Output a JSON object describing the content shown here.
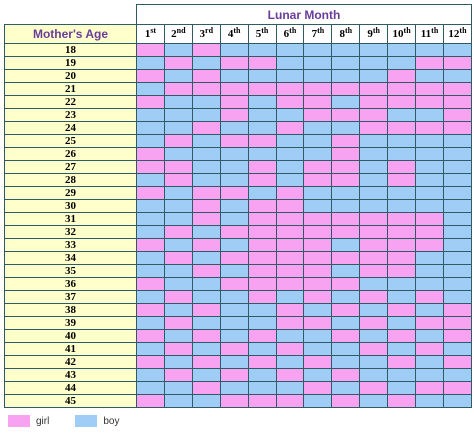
{
  "table": {
    "title": "Lunar Month",
    "age_header": "Mother's Age",
    "months": [
      {
        "num": "1",
        "suffix": "st"
      },
      {
        "num": "2",
        "suffix": "nd"
      },
      {
        "num": "3",
        "suffix": "rd"
      },
      {
        "num": "4",
        "suffix": "th"
      },
      {
        "num": "5",
        "suffix": "th"
      },
      {
        "num": "6",
        "suffix": "th"
      },
      {
        "num": "7",
        "suffix": "th"
      },
      {
        "num": "8",
        "suffix": "th"
      },
      {
        "num": "9",
        "suffix": "th"
      },
      {
        "num": "10",
        "suffix": "th"
      },
      {
        "num": "11",
        "suffix": "th"
      },
      {
        "num": "12",
        "suffix": "th"
      }
    ],
    "rows": [
      {
        "age": "18",
        "cells": [
          "girl",
          "boy",
          "girl",
          "boy",
          "boy",
          "boy",
          "boy",
          "boy",
          "boy",
          "boy",
          "boy",
          "boy"
        ]
      },
      {
        "age": "19",
        "cells": [
          "boy",
          "girl",
          "boy",
          "girl",
          "girl",
          "boy",
          "boy",
          "boy",
          "boy",
          "boy",
          "girl",
          "girl"
        ]
      },
      {
        "age": "20",
        "cells": [
          "girl",
          "boy",
          "girl",
          "boy",
          "boy",
          "boy",
          "boy",
          "boy",
          "boy",
          "girl",
          "boy",
          "boy"
        ]
      },
      {
        "age": "21",
        "cells": [
          "boy",
          "girl",
          "girl",
          "girl",
          "girl",
          "girl",
          "girl",
          "girl",
          "girl",
          "girl",
          "girl",
          "girl"
        ]
      },
      {
        "age": "22",
        "cells": [
          "girl",
          "boy",
          "boy",
          "girl",
          "boy",
          "girl",
          "girl",
          "boy",
          "girl",
          "girl",
          "girl",
          "girl"
        ]
      },
      {
        "age": "23",
        "cells": [
          "boy",
          "boy",
          "boy",
          "girl",
          "boy",
          "boy",
          "girl",
          "girl",
          "girl",
          "boy",
          "boy",
          "girl"
        ]
      },
      {
        "age": "24",
        "cells": [
          "boy",
          "boy",
          "girl",
          "boy",
          "boy",
          "girl",
          "boy",
          "boy",
          "girl",
          "girl",
          "girl",
          "girl"
        ]
      },
      {
        "age": "25",
        "cells": [
          "boy",
          "girl",
          "boy",
          "girl",
          "girl",
          "boy",
          "boy",
          "girl",
          "boy",
          "boy",
          "boy",
          "boy"
        ]
      },
      {
        "age": "26",
        "cells": [
          "girl",
          "boy",
          "boy",
          "boy",
          "boy",
          "boy",
          "boy",
          "girl",
          "boy",
          "boy",
          "boy",
          "boy"
        ]
      },
      {
        "age": "27",
        "cells": [
          "girl",
          "girl",
          "boy",
          "boy",
          "girl",
          "boy",
          "girl",
          "girl",
          "boy",
          "girl",
          "boy",
          "boy"
        ]
      },
      {
        "age": "28",
        "cells": [
          "boy",
          "girl",
          "boy",
          "boy",
          "girl",
          "boy",
          "girl",
          "girl",
          "boy",
          "girl",
          "boy",
          "boy"
        ]
      },
      {
        "age": "29",
        "cells": [
          "girl",
          "boy",
          "girl",
          "girl",
          "boy",
          "girl",
          "boy",
          "boy",
          "boy",
          "boy",
          "boy",
          "boy"
        ]
      },
      {
        "age": "30",
        "cells": [
          "boy",
          "boy",
          "girl",
          "boy",
          "girl",
          "girl",
          "boy",
          "boy",
          "boy",
          "boy",
          "boy",
          "boy"
        ]
      },
      {
        "age": "31",
        "cells": [
          "boy",
          "boy",
          "girl",
          "boy",
          "girl",
          "girl",
          "girl",
          "girl",
          "girl",
          "girl",
          "girl",
          "boy"
        ]
      },
      {
        "age": "32",
        "cells": [
          "boy",
          "girl",
          "boy",
          "girl",
          "girl",
          "girl",
          "girl",
          "girl",
          "girl",
          "girl",
          "girl",
          "boy"
        ]
      },
      {
        "age": "33",
        "cells": [
          "girl",
          "boy",
          "girl",
          "boy",
          "girl",
          "girl",
          "girl",
          "boy",
          "girl",
          "girl",
          "girl",
          "boy"
        ]
      },
      {
        "age": "34",
        "cells": [
          "boy",
          "girl",
          "boy",
          "girl",
          "girl",
          "girl",
          "girl",
          "girl",
          "girl",
          "girl",
          "boy",
          "boy"
        ]
      },
      {
        "age": "35",
        "cells": [
          "boy",
          "boy",
          "girl",
          "boy",
          "girl",
          "girl",
          "girl",
          "boy",
          "girl",
          "girl",
          "boy",
          "boy"
        ]
      },
      {
        "age": "36",
        "cells": [
          "girl",
          "boy",
          "boy",
          "girl",
          "girl",
          "girl",
          "girl",
          "girl",
          "boy",
          "boy",
          "boy",
          "boy"
        ]
      },
      {
        "age": "37",
        "cells": [
          "boy",
          "girl",
          "boy",
          "boy",
          "girl",
          "boy",
          "girl",
          "boy",
          "girl",
          "boy",
          "girl",
          "boy"
        ]
      },
      {
        "age": "38",
        "cells": [
          "girl",
          "boy",
          "girl",
          "boy",
          "boy",
          "girl",
          "boy",
          "girl",
          "boy",
          "girl",
          "boy",
          "girl"
        ]
      },
      {
        "age": "39",
        "cells": [
          "boy",
          "girl",
          "boy",
          "boy",
          "boy",
          "girl",
          "girl",
          "boy",
          "girl",
          "boy",
          "girl",
          "girl"
        ]
      },
      {
        "age": "40",
        "cells": [
          "girl",
          "boy",
          "girl",
          "boy",
          "girl",
          "boy",
          "boy",
          "girl",
          "boy",
          "girl",
          "boy",
          "girl"
        ]
      },
      {
        "age": "41",
        "cells": [
          "boy",
          "girl",
          "boy",
          "girl",
          "boy",
          "girl",
          "boy",
          "boy",
          "girl",
          "boy",
          "girl",
          "boy"
        ]
      },
      {
        "age": "42",
        "cells": [
          "girl",
          "boy",
          "girl",
          "boy",
          "girl",
          "boy",
          "girl",
          "boy",
          "boy",
          "girl",
          "boy",
          "girl"
        ]
      },
      {
        "age": "43",
        "cells": [
          "boy",
          "girl",
          "boy",
          "girl",
          "boy",
          "girl",
          "boy",
          "girl",
          "boy",
          "boy",
          "boy",
          "boy"
        ]
      },
      {
        "age": "44",
        "cells": [
          "boy",
          "boy",
          "girl",
          "boy",
          "boy",
          "boy",
          "girl",
          "boy",
          "girl",
          "boy",
          "girl",
          "girl"
        ]
      },
      {
        "age": "45",
        "cells": [
          "girl",
          "boy",
          "boy",
          "girl",
          "girl",
          "girl",
          "boy",
          "girl",
          "boy",
          "girl",
          "boy",
          "boy"
        ]
      }
    ]
  },
  "legend": [
    {
      "label": "girl",
      "color": "#f7a3f2"
    },
    {
      "label": "boy",
      "color": "#9fcdf5"
    }
  ]
}
